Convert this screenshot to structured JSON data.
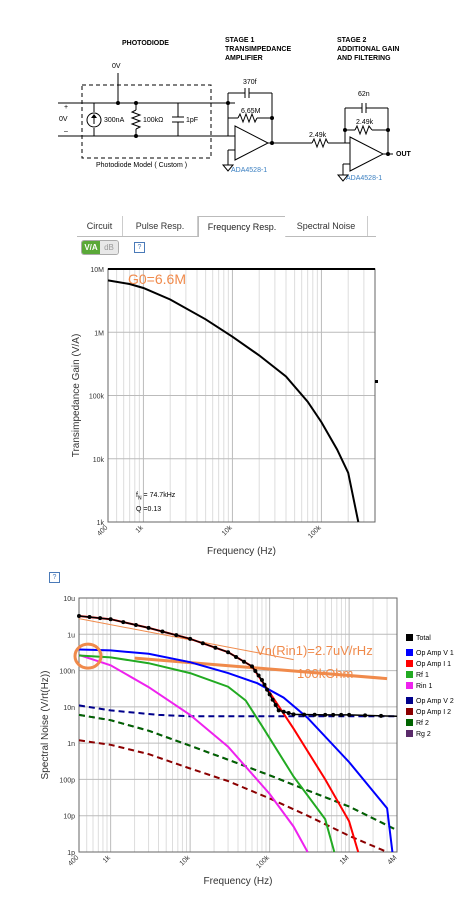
{
  "schematic": {
    "photodiode_title": "PHOTODIODE",
    "stage1_title": [
      "STAGE 1",
      "TRANSIMPEDANCE",
      "AMPLIFIER"
    ],
    "stage2_title": [
      "STAGE 2",
      "ADDITIONAL GAIN",
      "AND FILTERING"
    ],
    "bias_voltage": "0V",
    "input_voltage": "0V",
    "plus_sign": "+",
    "minus_sign": "–",
    "current_source": "300nA",
    "shunt_resistor": "100kΩ",
    "diode_cap": "1pF",
    "photodiode_model": "Photodiode Model ( Custom )",
    "feedback_cap1": "370f",
    "feedback_res1": "6.65M",
    "series_res": "2.49k",
    "feedback_cap2": "62n",
    "feedback_res2": "2.49k",
    "opamp1": "ADA4528-1",
    "opamp2": "ADA4528-1",
    "output_label": "OUT"
  },
  "tabs": {
    "items": [
      "Circuit",
      "Pulse Resp.",
      "Frequency Resp.",
      "Spectral Noise"
    ],
    "active": "Frequency Resp."
  },
  "units_toggle": {
    "va": "V/A",
    "db": "dB"
  },
  "help_glyph": "?",
  "freq_chart": {
    "annotation": "G0=6.6M",
    "fn_label": "f",
    "fn_sub": "N",
    "fn_value": "= 74.7kHz",
    "q_label": "Q =0.13"
  },
  "noise_chart": {
    "annotation1": "Vn(Rin1)=2.7uV/rHz",
    "annotation2": "100kOhm"
  },
  "chart_data": [
    {
      "type": "line",
      "xlabel": "Frequency (Hz)",
      "ylabel": "Transimpedance Gain (V/A)",
      "x_scale": "log",
      "y_scale": "log",
      "xlim": [
        400,
        400000
      ],
      "ylim": [
        1000,
        10000000
      ],
      "x_ticks": [
        {
          "v": 400,
          "label": "400"
        },
        {
          "v": 1000,
          "label": "1k"
        },
        {
          "v": 10000,
          "label": "10k"
        },
        {
          "v": 100000,
          "label": "100k"
        }
      ],
      "y_ticks": [
        {
          "v": 1000,
          "label": "1k"
        },
        {
          "v": 10000,
          "label": "10k"
        },
        {
          "v": 100000,
          "label": "100k"
        },
        {
          "v": 1000000,
          "label": "1M"
        },
        {
          "v": 10000000,
          "label": "10M"
        }
      ],
      "series": [
        {
          "color": "#000000",
          "points": [
            [
              400,
              6600000
            ],
            [
              700,
              5800000
            ],
            [
              1000,
              5000000
            ],
            [
              2000,
              3300000
            ],
            [
              5000,
              1600000
            ],
            [
              10000,
              850000
            ],
            [
              20000,
              430000
            ],
            [
              40000,
              200000
            ],
            [
              70000,
              80000
            ],
            [
              100000,
              38000
            ],
            [
              150000,
              14000
            ],
            [
              200000,
              6000
            ],
            [
              260000,
              1000
            ]
          ]
        }
      ]
    },
    {
      "type": "line",
      "xlabel": "Frequency (Hz)",
      "ylabel": "Spectral Noise (V/rt(Hz))",
      "x_scale": "log",
      "y_scale": "log",
      "xlim": [
        400,
        4000000
      ],
      "ylim": [
        1e-12,
        1e-05
      ],
      "x_ticks": [
        {
          "v": 400,
          "label": "400"
        },
        {
          "v": 1000,
          "label": "1k"
        },
        {
          "v": 10000,
          "label": "10k"
        },
        {
          "v": 100000,
          "label": "100k"
        },
        {
          "v": 1000000,
          "label": "1M"
        },
        {
          "v": 4000000,
          "label": "4M"
        }
      ],
      "y_ticks": [
        {
          "v": 1e-05,
          "label": "10u"
        },
        {
          "v": 1e-06,
          "label": "1u"
        },
        {
          "v": 1e-07,
          "label": "100n"
        },
        {
          "v": 1e-08,
          "label": "10n"
        },
        {
          "v": 1e-09,
          "label": "1n"
        },
        {
          "v": 1e-10,
          "label": "100p"
        },
        {
          "v": 1e-11,
          "label": "10p"
        },
        {
          "v": 1e-12,
          "label": "1p"
        }
      ],
      "series": [
        {
          "name": "Total",
          "color": "#000000",
          "dash": "",
          "marker": true,
          "points": [
            [
              400,
              3.2e-06
            ],
            [
              1000,
              2.6e-06
            ],
            [
              3000,
              1.5e-06
            ],
            [
              10000,
              7.5e-07
            ],
            [
              30000,
              3.2e-07
            ],
            [
              60000,
              1.3e-07
            ],
            [
              80000,
              5.5e-08
            ],
            [
              100000,
              2.2e-08
            ],
            [
              130000,
              8e-09
            ],
            [
              200000,
              6.2e-09
            ],
            [
              500000,
              6e-09
            ],
            [
              1000000,
              6e-09
            ],
            [
              4000000,
              5.5e-09
            ]
          ]
        },
        {
          "name": "Op Amp V 1",
          "color": "#0000ff",
          "dash": "",
          "points": [
            [
              400,
              3.8e-07
            ],
            [
              1000,
              3.6e-07
            ],
            [
              3000,
              2.9e-07
            ],
            [
              10000,
              1.7e-07
            ],
            [
              30000,
              8.5e-08
            ],
            [
              70000,
              4.5e-08
            ],
            [
              150000,
              1.8e-08
            ],
            [
              300000,
              5e-09
            ],
            [
              1000000,
              3e-10
            ],
            [
              3000000,
              1.6e-11
            ],
            [
              3500000,
              1e-12
            ]
          ]
        },
        {
          "name": "Op Amp I 1",
          "color": "#ff0000",
          "dash": "",
          "points": [
            [
              400,
              3.2e-06
            ],
            [
              1000,
              2.6e-06
            ],
            [
              3000,
              1.5e-06
            ],
            [
              10000,
              7.5e-07
            ],
            [
              30000,
              3.2e-07
            ],
            [
              60000,
              1.3e-07
            ],
            [
              100000,
              2.5e-08
            ],
            [
              200000,
              2.5e-09
            ],
            [
              500000,
              1e-10
            ],
            [
              1000000,
              7e-12
            ],
            [
              1300000,
              1e-12
            ]
          ]
        },
        {
          "name": "Rf 1",
          "color": "#22aa22",
          "dash": "",
          "points": [
            [
              400,
              2.6e-07
            ],
            [
              1000,
              2.3e-07
            ],
            [
              3000,
              1.6e-07
            ],
            [
              10000,
              8.5e-08
            ],
            [
              30000,
              3.6e-08
            ],
            [
              50000,
              1.5e-08
            ],
            [
              80000,
              3e-09
            ],
            [
              200000,
              1.2e-10
            ],
            [
              500000,
              8e-12
            ],
            [
              650000,
              1e-12
            ]
          ]
        },
        {
          "name": "Rin 1",
          "color": "#ee22ee",
          "dash": "",
          "points": [
            [
              400,
              2.7e-07
            ],
            [
              1000,
              1.4e-07
            ],
            [
              3000,
              3.5e-08
            ],
            [
              10000,
              6e-09
            ],
            [
              30000,
              8e-10
            ],
            [
              100000,
              4e-11
            ],
            [
              200000,
              5e-12
            ],
            [
              300000,
              1e-12
            ]
          ]
        },
        {
          "name": "Op Amp V 2",
          "color": "#00008b",
          "dash": "6,4",
          "points": [
            [
              400,
              1.1e-08
            ],
            [
              1000,
              8e-09
            ],
            [
              4000,
              6e-09
            ],
            [
              10000,
              5.5e-09
            ],
            [
              100000,
              5.5e-09
            ],
            [
              1000000,
              5.5e-09
            ],
            [
              4000000,
              5.5e-09
            ]
          ]
        },
        {
          "name": "Op Amp I 2",
          "color": "#8b0000",
          "dash": "6,4",
          "points": [
            [
              400,
              1.2e-09
            ],
            [
              1000,
              9e-10
            ],
            [
              3000,
              5e-10
            ],
            [
              10000,
              2e-10
            ],
            [
              30000,
              9e-11
            ],
            [
              100000,
              3e-11
            ],
            [
              300000,
              1e-11
            ],
            [
              1000000,
              2.8e-12
            ],
            [
              3000000,
              1e-12
            ]
          ]
        },
        {
          "name": "Rf 2",
          "color": "#006400",
          "dash": "6,4",
          "points": [
            [
              400,
              6e-09
            ],
            [
              1000,
              4.3e-09
            ],
            [
              3000,
              2.2e-09
            ],
            [
              10000,
              8.5e-10
            ],
            [
              30000,
              3.5e-10
            ],
            [
              100000,
              1.3e-10
            ],
            [
              300000,
              5e-11
            ],
            [
              1000000,
              1.8e-11
            ],
            [
              4000000,
              4e-12
            ]
          ]
        },
        {
          "name": "Rg 2",
          "color": "#5a2a6a",
          "dash": "6,4",
          "points": [
            [
              400,
              6e-09
            ],
            [
              1000,
              4.3e-09
            ],
            [
              3000,
              2.2e-09
            ],
            [
              10000,
              8.5e-10
            ],
            [
              30000,
              3.5e-10
            ],
            [
              100000,
              1.3e-10
            ],
            [
              300000,
              5e-11
            ],
            [
              1000000,
              1.8e-11
            ],
            [
              4000000,
              4e-12
            ]
          ]
        }
      ],
      "annotation_lines": [
        {
          "color": "#f08a4b",
          "width": 1,
          "points": [
            [
              400,
              2.7e-06
            ],
            [
              200000,
              2e-07
            ]
          ]
        },
        {
          "color": "#f08a4b",
          "width": 3,
          "points": [
            [
              2000,
              2.2e-07
            ],
            [
              3000000,
              6e-08
            ]
          ]
        }
      ]
    }
  ]
}
